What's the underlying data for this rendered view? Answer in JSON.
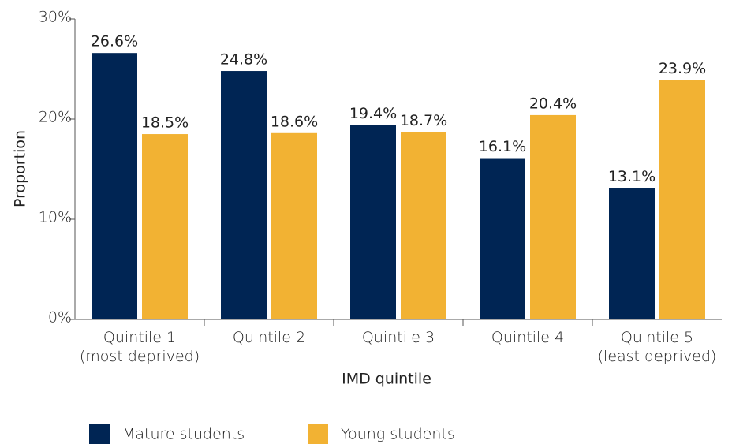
{
  "chart_data": {
    "type": "bar",
    "categories": [
      "Quintile 1\n(most deprived)",
      "Quintile 2",
      "Quintile 3",
      "Quintile 4",
      "Quintile 5\n(least deprived)"
    ],
    "series": [
      {
        "name": "Mature students",
        "color": "#002554",
        "values": [
          26.6,
          24.8,
          19.4,
          16.1,
          13.1
        ],
        "value_labels": [
          "26.6%",
          "24.8%",
          "19.4%",
          "16.1%",
          "13.1%"
        ]
      },
      {
        "name": "Young students",
        "color": "#f2b233",
        "values": [
          18.5,
          18.6,
          18.7,
          20.4,
          23.9
        ],
        "value_labels": [
          "18.5%",
          "18.6%",
          "18.7%",
          "20.4%",
          "23.9%"
        ]
      }
    ],
    "ylim": [
      0,
      30
    ],
    "yticks": [
      {
        "value": 0,
        "label": "0%"
      },
      {
        "value": 10,
        "label": "10%"
      },
      {
        "value": 20,
        "label": "20%"
      },
      {
        "value": 30,
        "label": "30%"
      }
    ],
    "y_label": "Proportion",
    "x_label": "IMD quintile",
    "legend": "bottom"
  }
}
